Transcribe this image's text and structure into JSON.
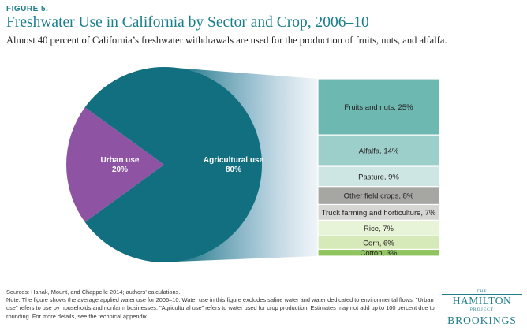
{
  "figure": {
    "label": "FIGURE 5.",
    "title": "Freshwater Use in California by Sector and Crop, 2006–10",
    "subtitle": "Almost 40 percent of California’s freshwater withdrawals are used for the production of fruits, nuts, and alfalfa."
  },
  "chart_data": [
    {
      "type": "pie",
      "title": "",
      "categories": [
        "Urban use",
        "Agricultural use"
      ],
      "values": [
        20,
        80
      ],
      "value_labels": [
        "20%",
        "80%"
      ],
      "colors": [
        "#8e53a2",
        "#126f80"
      ]
    },
    {
      "type": "bar",
      "orientation": "stacked-vertical",
      "parent": "Agricultural use",
      "categories": [
        "Fruits and nuts",
        "Alfalfa",
        "Pasture",
        "Other field crops",
        "Truck farming and horticulture",
        "Rice",
        "Corn",
        "Cotton"
      ],
      "values": [
        25,
        14,
        9,
        8,
        7,
        7,
        6,
        3
      ],
      "labels": [
        "Fruits and nuts, 25%",
        "Alfalfa,  14%",
        "Pasture, 9%",
        "Other field crops, 8%",
        "Truck farming and horticulture, 7%",
        "Rice, 7%",
        "Corn, 6%",
        "Cotton, 3%"
      ],
      "colors": [
        "#6db8b1",
        "#9ccfca",
        "#cde6e3",
        "#a6a6a2",
        "#d5d5d2",
        "#e8f4d8",
        "#d6e9b9",
        "#8fc45f"
      ]
    }
  ],
  "notes": {
    "sources": "Sources: Hanak, Mount, and Chappelle 2014; authors’ calculations.",
    "note": "Note: The figure shows the average applied water use for 2006–10. Water use in this figure excludes saline water and water dedicated to environmental flows. \"Urban use\" refers to use by households and nonfarm businesses. \"Agricultural use\" refers to water used for crop production. Estimates may not add up to 100 percent due to rounding. For more details, see the technical appendix."
  },
  "logo": {
    "the": "THE",
    "hamilton": "HAMILTON",
    "project": "PROJECT",
    "brookings": "BROOKINGS"
  },
  "colors": {
    "title": "#1a7f8c",
    "funnel_dark": "#126f80"
  }
}
